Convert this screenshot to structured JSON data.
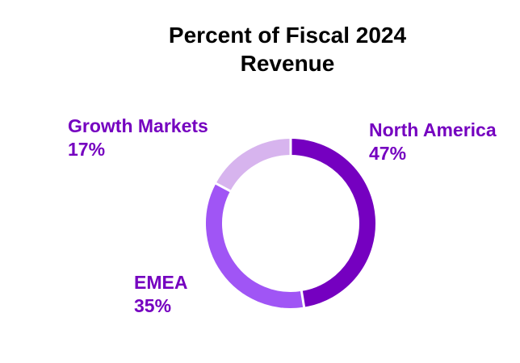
{
  "chart_data": {
    "type": "pie",
    "title_lines": [
      "Percent of Fiscal 2024",
      "Revenue"
    ],
    "slices": [
      {
        "label": "North America",
        "value": 47,
        "display": "47%",
        "color": "#7500C0",
        "label_color": "#7500C0"
      },
      {
        "label": "EMEA",
        "value": 35,
        "display": "35%",
        "color": "#A055F5",
        "label_color": "#7500C0"
      },
      {
        "label": "Growth Markets",
        "value": 17,
        "display": "17%",
        "color": "#D7B4EE",
        "label_color": "#7500C0"
      }
    ],
    "donut": true,
    "legend": "none"
  }
}
